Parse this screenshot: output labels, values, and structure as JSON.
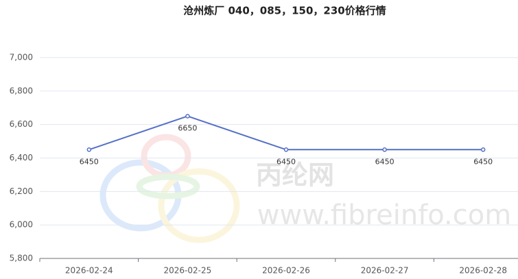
{
  "chart_data": {
    "type": "line",
    "title": "沧州炼厂 040，085，150，230价格行情",
    "categories": [
      "2026-02-24",
      "2026-02-25",
      "2026-02-26",
      "2026-02-27",
      "2026-02-28"
    ],
    "series": [
      {
        "name": "价格",
        "color": "#5470c6",
        "values": [
          6450,
          6650,
          6450,
          6450,
          6450
        ]
      }
    ],
    "ylim": [
      5800,
      7000
    ],
    "yticks": [
      {
        "value": 5800,
        "label": "5,800"
      },
      {
        "value": 6000,
        "label": "6,000"
      },
      {
        "value": 6200,
        "label": "6,200"
      },
      {
        "value": 6400,
        "label": "6,400"
      },
      {
        "value": 6600,
        "label": "6,600"
      },
      {
        "value": 6800,
        "label": "6,800"
      },
      {
        "value": 7000,
        "label": "7,000"
      }
    ],
    "grid": true,
    "watermark": {
      "name": "丙纶网",
      "site": "www.fibreinfo.com"
    }
  }
}
